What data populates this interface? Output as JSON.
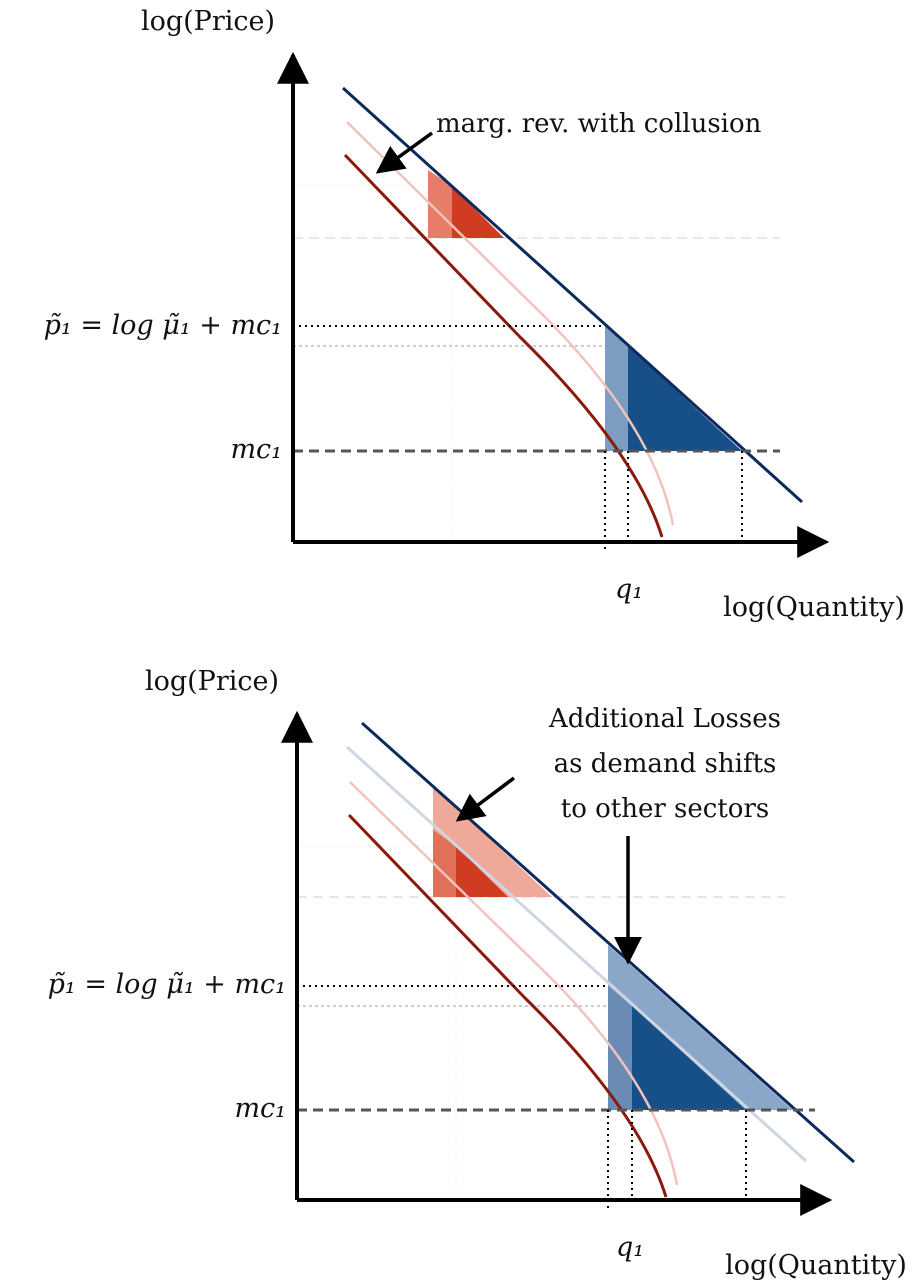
{
  "diagram_top": {
    "y_axis_title": "log(Price)",
    "x_axis_title": "log(Quantity)",
    "price_label": "p̃₁ = log μ̃₁ + mc₁",
    "mc_label": "mc₁",
    "q_label": "q₁",
    "annotation": "marg. rev. with collusion"
  },
  "diagram_bottom": {
    "y_axis_title": "log(Price)",
    "x_axis_title": "log(Quantity)",
    "price_label": "p̃₁ = log μ̃₁ + mc₁",
    "mc_label": "mc₁",
    "q_label": "q₁",
    "annotation_lines": [
      "Additional Losses",
      "as demand shifts",
      "to other sectors"
    ]
  },
  "colors": {
    "demand": "#0d2a5c",
    "marginal_revenue": "#8b1a0a",
    "faint_mr": "#f0c4be",
    "shifted_demand": "#cdd6e2",
    "red_fill": "#d03c22",
    "red_fill_light": "#e77c68",
    "red_fill_faint": "#f0a898",
    "blue_fill": "#174f88",
    "blue_fill_light": "#7c9cc0",
    "blue_fill_faint": "#8aa6c8",
    "dashed": "#555555"
  }
}
